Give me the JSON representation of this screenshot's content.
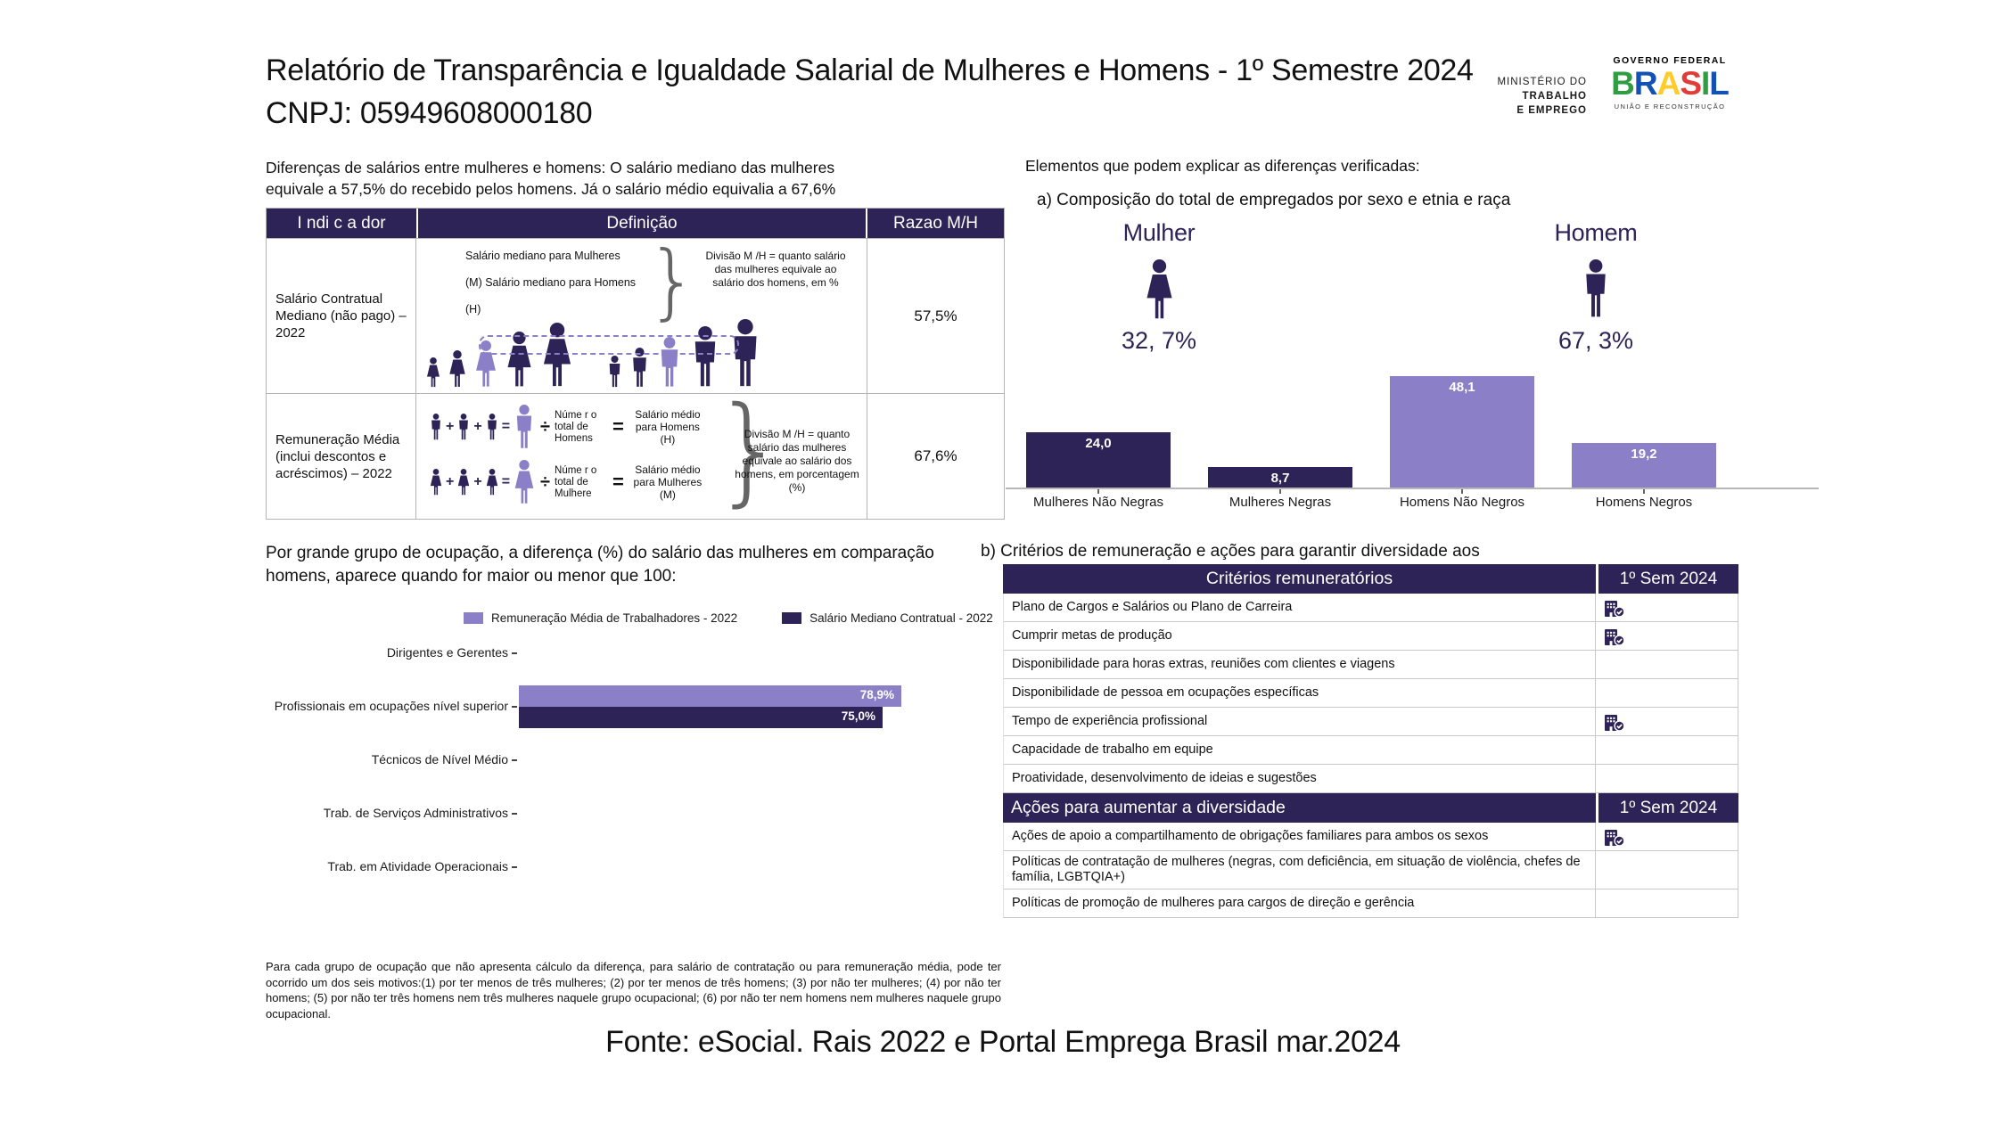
{
  "colors": {
    "dark": "#2e2356",
    "light": "#8b80c7",
    "axis": "#b8b8b8"
  },
  "header": {
    "title": "Relatório de Transparência e Igualdade Salarial de Mulheres e Homens - 1º Semestre 2024",
    "cnpj": "CNPJ: 05949608000180",
    "ministry": {
      "line1": "MINISTÉRIO DO",
      "line2": "TRABALHO",
      "line3": "E EMPREGO"
    },
    "gov_logo": {
      "top": "GOVERNO FEDERAL",
      "brand": "BRASIL",
      "bottom": "UNIÃO E RECONSTRUÇÃO",
      "letter_colors": [
        "#2f9e41",
        "#1351b4",
        "#ffcc29",
        "#e23c39",
        "#2f9e41",
        "#1351b4"
      ]
    }
  },
  "intro": {
    "left_text": "Diferenças de salários entre mulheres e homens: O salário mediano das mulheres\nequivale a 57,5% do recebido pelos homens. Já o salário médio equivalia a 67,6%",
    "right_title": "Elementos que podem explicar as diferenças verificadas:",
    "section_a_title": "a) Composição do total de empregados por sexo e etnia e raça"
  },
  "indicator_table": {
    "headers": [
      "I ndi c a dor",
      "Definição",
      "Razao M/H"
    ],
    "operators": {
      "plus": "+",
      "equals": "=",
      "divide": "÷",
      "heavy_equals": "=",
      "brace": "}"
    },
    "rows": [
      {
        "indicator": "Salário Contratual Mediano (não pago) – 2022",
        "ratio": "57,5%",
        "definition": {
          "line1": "Salário  mediano  para  Mulheres",
          "line2": "(M) Salário mediano para Homens",
          "line3": "(H)",
          "note": "Divisão M /H = quanto salário das mulheres equivale ao salário dos homens, em %"
        }
      },
      {
        "indicator": "Remuneração Média (inclui descontos e acréscimos) – 2022",
        "ratio": "67,6%",
        "definition": {
          "men_divisor": "Núme r o total de Homens",
          "men_result": "Salário médio para Homens (H)",
          "women_divisor": "Núme r o total de Mulhere",
          "women_result": "Salário médio para Mulheres (M)",
          "note": "Divisão M /H = quanto salário das mulheres equivale ao salário dos homens, em porcentagem (%)"
        }
      }
    ]
  },
  "composition": {
    "female": {
      "label": "Mulher",
      "pct": "32, 7%"
    },
    "male": {
      "label": "Homem",
      "pct": "67, 3%"
    }
  },
  "chart_data": [
    {
      "type": "bar",
      "id": "composition-by-sex-race",
      "title": "a) Composição do total de empregados por sexo e etnia e raça",
      "categories": [
        "Mulheres Não Negras",
        "Mulheres Negras",
        "Homens Não Negros",
        "Homens Negros"
      ],
      "values": [
        24.0,
        8.7,
        48.1,
        19.2
      ],
      "value_labels": [
        "24,0",
        "8,7",
        "48,1",
        "19,2"
      ],
      "bar_colors": [
        "#2e2356",
        "#2e2356",
        "#8b80c7",
        "#8b80c7"
      ],
      "ylim": [
        0,
        50
      ],
      "grid": false,
      "legend": "none"
    },
    {
      "type": "bar",
      "orientation": "horizontal",
      "id": "occupation-pay-ratio",
      "categories": [
        "Dirigentes e Gerentes",
        "Profissionais em ocupações nível superior",
        "Técnicos de Nível Médio",
        "Trab. de Serviços Administrativos",
        "Trab. em Atividade Operacionais"
      ],
      "series": [
        {
          "name": "Remuneração Média de Trabalhadores - 2022",
          "color": "#8b80c7",
          "values": [
            null,
            78.9,
            null,
            null,
            null
          ],
          "value_labels": [
            "",
            "78,9%",
            "",
            "",
            ""
          ]
        },
        {
          "name": "Salário Mediano Contratual - 2022",
          "color": "#2e2356",
          "values": [
            null,
            75.0,
            null,
            null,
            null
          ],
          "value_labels": [
            "",
            "75,0%",
            "",
            "",
            ""
          ]
        }
      ],
      "xlim": [
        0,
        100
      ],
      "grid": false,
      "legend_position": "top"
    }
  ],
  "occupation_section": {
    "title": "Por grande grupo de ocupação, a diferença (%) do salário das mulheres em comparação\nhomens, aparece quando for maior ou menor que 100:"
  },
  "criteria_section": {
    "title": "b) Critérios de remuneração e ações para garantir diversidade aos",
    "tables": [
      {
        "header": "Critérios remuneratórios",
        "period": "1º Sem 2024",
        "header_align": "center",
        "rows": [
          {
            "label": "Plano de Cargos e Salários ou Plano de Carreira",
            "checked": true
          },
          {
            "label": "Cumprir metas de produção",
            "checked": true
          },
          {
            "label": "Disponibilidade para horas extras, reuniões com clientes e viagens",
            "checked": false
          },
          {
            "label": "Disponibilidade de pessoa em ocupações específicas",
            "checked": false
          },
          {
            "label": "Tempo de experiência profissional",
            "checked": true
          },
          {
            "label": "Capacidade de trabalho em equipe",
            "checked": false
          },
          {
            "label": "Proatividade, desenvolvimento de ideias e sugestões",
            "checked": false
          }
        ]
      },
      {
        "header": "Ações para aumentar a diversidade",
        "period": "1º Sem 2024",
        "header_align": "left",
        "rows": [
          {
            "label": "Ações de apoio a compartilhamento de obrigações familiares para ambos os sexos",
            "checked": true
          },
          {
            "label": "Políticas de contratação de mulheres (negras, com deficiência, em situação de violência, chefes de família, LGBTQIA+)",
            "checked": false
          },
          {
            "label": "Políticas de promoção de mulheres para cargos de direção e gerência",
            "checked": false
          }
        ]
      }
    ]
  },
  "footer": {
    "note": "Para cada grupo de ocupação que não apresenta cálculo da diferença, para salário de contratação ou para remuneração média, pode ter ocorrido um dos seis motivos:(1) por ter menos de três mulheres; (2) por ter menos de três homens; (3) por não ter mulheres; (4) por não ter homens; (5) por não ter três homens nem três mulheres naquele grupo ocupacional; (6) por não ter nem homens nem mulheres naquele grupo ocupacional.",
    "source": "Fonte: eSocial. Rais 2022 e Portal Emprega Brasil mar.2024"
  }
}
